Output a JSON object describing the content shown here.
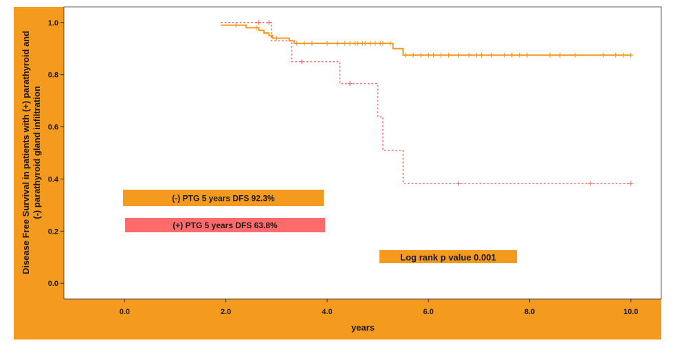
{
  "chart_data": {
    "type": "line",
    "title": "",
    "xlabel": "years",
    "ylabel_lines": [
      "Disease Free Survival in patients with (+) parathyroid and",
      "(-) parathyroid gland infiltration"
    ],
    "xlim": [
      -1.2,
      10.6
    ],
    "ylim": [
      -0.06,
      1.06
    ],
    "xticks": [
      0,
      2,
      4,
      6,
      8,
      10
    ],
    "yticks": [
      0,
      0.2,
      0.4,
      0.6,
      0.8,
      1.0
    ],
    "grid": false,
    "series": [
      {
        "name": "(-) PTG",
        "color": "#F39A1F",
        "style": "solid",
        "x": [
          1.9,
          2.4,
          2.65,
          2.75,
          2.85,
          2.92,
          3.25,
          3.35,
          5.3,
          5.5,
          10.0
        ],
        "y": [
          0.99,
          0.98,
          0.97,
          0.96,
          0.95,
          0.94,
          0.93,
          0.92,
          0.9,
          0.875,
          0.875
        ],
        "censor_x": [
          2.2,
          2.6,
          3.0,
          3.4,
          3.55,
          3.7,
          4.0,
          4.2,
          4.35,
          4.45,
          4.55,
          4.6,
          4.7,
          4.75,
          4.85,
          4.95,
          5.05,
          5.1,
          5.25,
          5.55,
          5.7,
          5.85,
          6.0,
          6.1,
          6.25,
          6.4,
          6.6,
          6.8,
          6.95,
          7.05,
          7.25,
          7.5,
          7.65,
          7.8,
          7.95,
          8.4,
          8.6,
          8.9,
          9.45,
          9.7,
          9.85,
          10.0
        ]
      },
      {
        "name": "(+) PTG",
        "color": "#FF6B6B",
        "style": "dotted",
        "x": [
          1.9,
          2.9,
          3.3,
          4.25,
          5.0,
          5.1,
          5.5,
          10.0
        ],
        "y": [
          1.0,
          0.93,
          0.85,
          0.766,
          0.638,
          0.51,
          0.383,
          0.383
        ],
        "censor_x": [
          2.65,
          2.85,
          3.5,
          4.45,
          6.6,
          9.2,
          10.0
        ]
      }
    ],
    "annotations": [
      {
        "text": "(-) PTG 5 years DFS 92.3%",
        "color": "#F39A1F",
        "font_size": 12
      },
      {
        "text": "(+) PTG 5 years DFS 63.8%",
        "color": "#FF6B6B",
        "font_size": 12
      },
      {
        "text": "Log rank p value 0.001",
        "color": "#F39A1F",
        "font_size": 13
      }
    ],
    "frame_color": "#F39A1F"
  }
}
